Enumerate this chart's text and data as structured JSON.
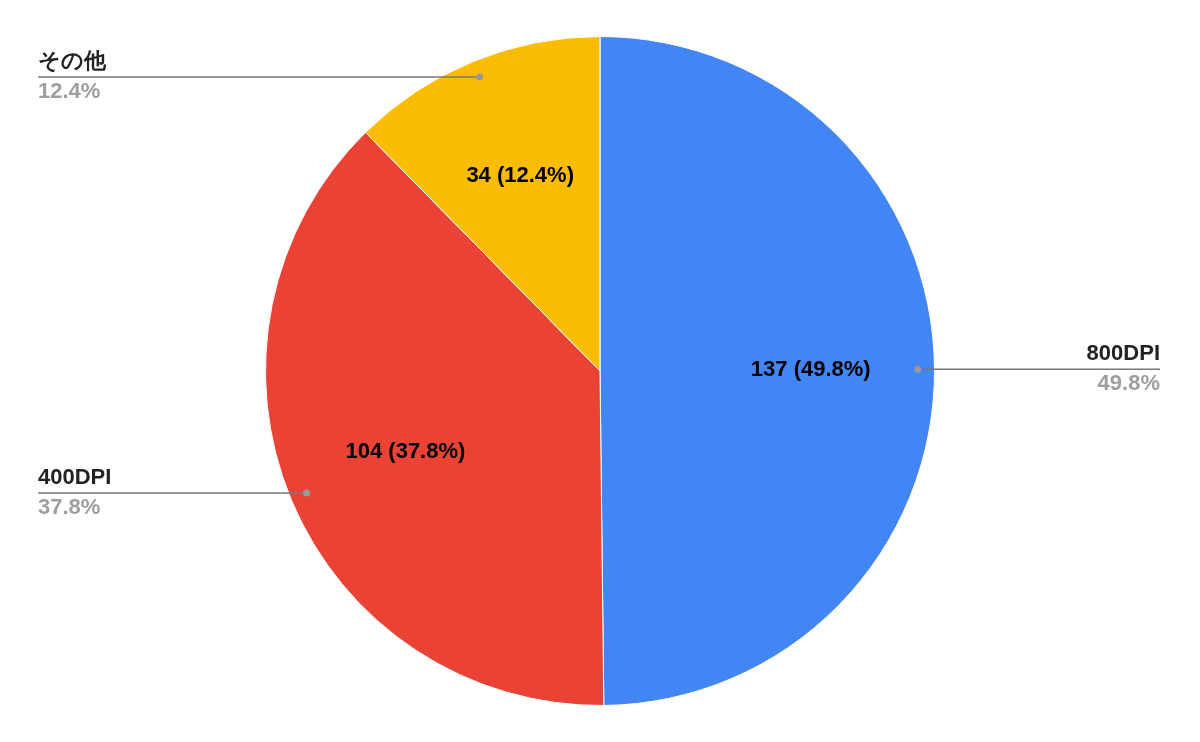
{
  "chart_data": {
    "type": "pie",
    "categories": [
      "800DPI",
      "400DPI",
      "その他"
    ],
    "values": [
      137,
      104,
      34
    ],
    "colors": [
      "#4285f4",
      "#ea4335",
      "#fbbc04"
    ],
    "value_labels": [
      "137 (49.8%)",
      "104 (37.8%)",
      "34 (12.4%)"
    ],
    "annotations": [
      "49.8%",
      "37.8%",
      "12.4%"
    ]
  }
}
